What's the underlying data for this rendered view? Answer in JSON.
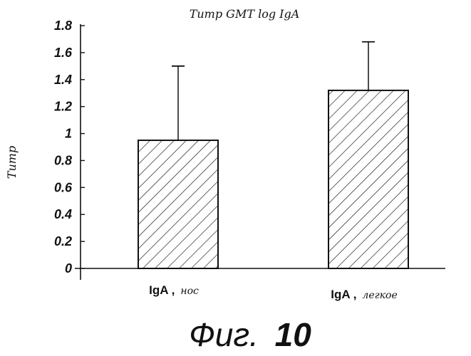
{
  "chart_data": {
    "type": "bar",
    "title": "Титр GMT log IgA",
    "ylabel": "Титр",
    "xlabel": "",
    "categories": [
      {
        "main": "IgA",
        "sub": "нос"
      },
      {
        "main": "IgA",
        "sub": "легкое"
      }
    ],
    "values": [
      0.95,
      1.32
    ],
    "error_upper": [
      1.5,
      1.68
    ],
    "ylim": [
      0,
      1.8
    ],
    "yticks": [
      "0",
      "0.2",
      "0.4",
      "0.6",
      "0.8",
      "1",
      "1.2",
      "1.4",
      "1.6",
      "1.8"
    ],
    "grid": false,
    "bar_fill": "diagonal-hatch",
    "bar_color": "#111111"
  },
  "caption": {
    "prefix": "Фиг.",
    "number": "10"
  }
}
